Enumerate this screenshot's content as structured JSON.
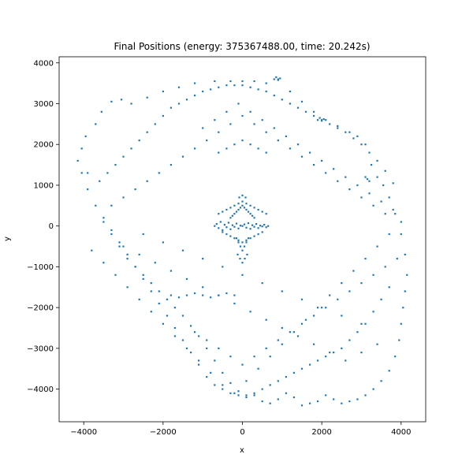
{
  "chart_data": {
    "type": "scatter",
    "title": "Final Positions (energy: 375367488.00, time: 20.242s)",
    "xlabel": "x",
    "ylabel": "y",
    "xlim": [
      -4620,
      4620
    ],
    "ylim": [
      -4800,
      4150
    ],
    "xticks": [
      -4000,
      -2000,
      0,
      2000,
      4000
    ],
    "xtick_labels": [
      "−4000",
      "−2000",
      "0",
      "2000",
      "4000"
    ],
    "yticks": [
      -4000,
      -3000,
      -2000,
      -1000,
      0,
      1000,
      2000,
      3000,
      4000
    ],
    "ytick_labels": [
      "−4000",
      "−3000",
      "−2000",
      "−1000",
      "0",
      "1000",
      "2000",
      "3000",
      "4000"
    ],
    "grid": false,
    "legend": "none",
    "point_color": "#1f77b4",
    "series": [
      {
        "x": [
          -4150,
          -4050,
          -3950,
          -3900,
          -3700,
          -3550,
          -3300,
          -3050,
          -2800,
          -2400,
          -2000,
          -1600,
          -1200,
          -700,
          -300,
          0,
          300,
          600,
          900,
          1200,
          1500,
          1800,
          2100,
          2400,
          2700,
          2900,
          3100,
          3250,
          3400,
          3550,
          3700,
          3850,
          4000,
          4100,
          4150,
          4100,
          4050,
          4000,
          3950,
          3850,
          3700,
          3500,
          3300,
          3100,
          2900,
          2700,
          2500,
          2300,
          2100,
          1900,
          1700,
          1500,
          1300,
          1100,
          900,
          700,
          500,
          300,
          100,
          -100,
          -300,
          -500,
          -700,
          -900,
          -1100,
          -1300,
          -1500,
          -1700,
          -1900,
          -2100,
          -2300,
          -2500,
          -2700,
          -2900,
          -3100,
          -3300,
          -3500,
          -3700,
          -3900,
          -4050,
          -3600,
          -3400,
          -3200,
          -3000,
          -2800,
          -2600,
          -2400,
          -2200,
          -2000,
          -1800,
          -1600,
          -1400,
          -1200,
          -1000,
          -800,
          -600,
          -400,
          -200,
          0,
          200,
          400,
          600,
          800,
          1000,
          1200,
          1400,
          1600,
          1800,
          2000,
          2200,
          2400,
          2600,
          2800,
          3000,
          3200,
          3400,
          3600,
          3800,
          -3500,
          -3300,
          -3100,
          -2900,
          -2700,
          -2500,
          -2300,
          -2100,
          -1900,
          -1700,
          -1500,
          -1300,
          -1100,
          -900,
          -700,
          -500,
          -300,
          -100,
          100,
          300,
          500,
          700,
          900,
          1100,
          1300,
          1500,
          1700,
          1900,
          2100,
          2300,
          2500,
          2700,
          2900,
          3100,
          3300,
          3500,
          3700,
          -3300,
          -3000,
          -2700,
          -2400,
          -2100,
          -1800,
          -1500,
          -1200,
          -900,
          -600,
          -300,
          0,
          300,
          600,
          900,
          1200,
          1500,
          1800,
          2100,
          2400,
          2700,
          3000,
          3300,
          3600,
          -3000,
          -2600,
          -2200,
          -1800,
          -1400,
          -1000,
          -600,
          -200,
          200,
          600,
          1000,
          1400,
          1800,
          2200,
          2600,
          3000,
          3400,
          -2500,
          -2000,
          -1500,
          -1000,
          -500,
          0,
          500,
          1000,
          1500,
          2000,
          2500,
          3000,
          -700,
          -650,
          -600,
          -550,
          -500,
          -450,
          -400,
          -350,
          -300,
          -250,
          -200,
          -150,
          -100,
          -50,
          0,
          50,
          100,
          150,
          200,
          250,
          300,
          350,
          400,
          450,
          500,
          550,
          600,
          650,
          -600,
          -500,
          -400,
          -300,
          -200,
          -100,
          0,
          100,
          200,
          300,
          400,
          500,
          600,
          -150,
          -100,
          -50,
          0,
          50,
          100,
          150,
          -120,
          -60,
          0,
          60,
          120,
          -80,
          0,
          80,
          -300,
          -250,
          -200,
          -150,
          -100,
          -50,
          0,
          50,
          100,
          150,
          200,
          250,
          300,
          -500,
          -400,
          -300,
          -200,
          -100,
          0,
          100,
          200,
          300,
          400,
          500,
          800,
          850,
          900,
          950,
          1900,
          1950,
          2000,
          2050,
          3100,
          3150,
          3200,
          -1800,
          -1600,
          -1400,
          -1200,
          -1000,
          -800,
          -600,
          -400,
          -200,
          -600,
          -400,
          -200,
          0,
          200,
          400,
          600,
          -3800,
          -3500,
          -3200,
          -2900,
          -2600,
          -2300,
          -2000,
          -1700,
          -1400,
          -1100,
          -800,
          -500,
          -200,
          100,
          400,
          700,
          1000,
          1300,
          1600,
          1900,
          2200,
          2500,
          2800,
          3100,
          3400,
          3700,
          4000,
          -1000,
          -700,
          -400,
          -100,
          200,
          500,
          800,
          1100,
          1400,
          1700,
          2000,
          2300,
          2600,
          2900,
          3200,
          3500,
          3800,
          -1200,
          -900,
          -600,
          -300,
          0,
          300,
          600,
          900,
          1200,
          1500,
          1800,
          2100,
          2400,
          2700,
          3000,
          3300,
          3600,
          3900
        ],
        "y": [
          1600,
          1900,
          2200,
          1300,
          2500,
          2800,
          3050,
          3100,
          3000,
          3150,
          3300,
          3400,
          3500,
          3550,
          3550,
          3550,
          3550,
          3500,
          3600,
          3300,
          3050,
          2800,
          2600,
          2450,
          2300,
          2200,
          2000,
          1500,
          1200,
          1000,
          700,
          300,
          -200,
          -700,
          -1200,
          -1600,
          -2000,
          -2400,
          -2800,
          -3200,
          -3550,
          -3800,
          -4000,
          -4150,
          -4250,
          -4300,
          -4350,
          -4250,
          -4150,
          -4300,
          -4350,
          -4400,
          -4200,
          -4100,
          -4250,
          -4350,
          -4300,
          -4150,
          -4200,
          -4050,
          -3850,
          -3600,
          -3300,
          -3000,
          -2700,
          -2450,
          -2200,
          -2000,
          -1800,
          -1600,
          -1400,
          -1200,
          -1000,
          -800,
          -500,
          -200,
          100,
          500,
          900,
          1300,
          1100,
          1300,
          1500,
          1700,
          1900,
          2100,
          2300,
          2500,
          2700,
          2900,
          3000,
          3100,
          3200,
          3300,
          3350,
          3400,
          3450,
          3450,
          3450,
          3400,
          3350,
          3300,
          3200,
          3100,
          3000,
          2900,
          2800,
          2700,
          2600,
          2500,
          2400,
          2300,
          2150,
          2000,
          1800,
          1600,
          1350,
          1050,
          200,
          -100,
          -400,
          -700,
          -1000,
          -1300,
          -1600,
          -1900,
          -2200,
          -2500,
          -2800,
          -3100,
          -3400,
          -3700,
          -3900,
          -4000,
          -4100,
          -4150,
          -4150,
          -4100,
          -4000,
          -3900,
          -3800,
          -3700,
          -3600,
          -3500,
          -3400,
          -3300,
          -3200,
          -3100,
          -3000,
          -2800,
          -2600,
          -2400,
          -2100,
          -1800,
          -1500,
          500,
          700,
          900,
          1100,
          1300,
          1500,
          1700,
          1900,
          2100,
          2300,
          2500,
          2700,
          2500,
          2300,
          2100,
          1900,
          1700,
          1500,
          1300,
          1100,
          900,
          700,
          500,
          300,
          -500,
          -700,
          -900,
          -1100,
          -1300,
          -1500,
          -1700,
          -1900,
          -2100,
          -2300,
          -2500,
          -2700,
          -2900,
          -3100,
          -3300,
          -3100,
          -2900,
          -200,
          -400,
          -600,
          -800,
          -1000,
          -1200,
          -1400,
          -1600,
          -1800,
          -2000,
          -2200,
          -2400,
          0,
          50,
          -50,
          100,
          -100,
          30,
          -30,
          80,
          -80,
          20,
          -20,
          60,
          -60,
          10,
          0,
          40,
          -40,
          70,
          -70,
          20,
          -20,
          50,
          -50,
          10,
          -10,
          30,
          -30,
          0,
          300,
          350,
          400,
          450,
          500,
          550,
          600,
          550,
          500,
          450,
          400,
          350,
          300,
          -300,
          -400,
          -500,
          -600,
          -500,
          -400,
          -300,
          -700,
          -800,
          -900,
          -800,
          -700,
          700,
          750,
          700,
          200,
          250,
          300,
          350,
          400,
          450,
          500,
          450,
          400,
          350,
          300,
          250,
          200,
          -150,
          -200,
          -250,
          -300,
          -350,
          -400,
          -350,
          -300,
          -250,
          -200,
          -150,
          3600,
          3650,
          3580,
          3620,
          2600,
          2650,
          2580,
          2620,
          1200,
          1150,
          1100,
          -1700,
          -1750,
          -1700,
          -1650,
          -1700,
          -1750,
          -1700,
          -1650,
          -1700,
          1800,
          1900,
          2000,
          2100,
          2000,
          1900,
          1800,
          -600,
          -900,
          -1200,
          -1500,
          -1800,
          -2100,
          -2400,
          -2700,
          -3000,
          -3300,
          -3600,
          -3900,
          -4100,
          -3800,
          -3500,
          -3200,
          -2900,
          -2600,
          -2300,
          -2000,
          -1700,
          -1400,
          -1100,
          -800,
          -500,
          -200,
          100,
          2400,
          2600,
          2800,
          3000,
          2800,
          2600,
          2400,
          2200,
          2000,
          1800,
          1600,
          1400,
          1200,
          1000,
          800,
          600,
          400,
          -2600,
          -2800,
          -3000,
          -3200,
          -3400,
          -3200,
          -3000,
          -2800,
          -2600,
          -2400,
          -2200,
          -2000,
          -1800,
          -1600,
          -1400,
          -1200,
          -1000,
          -800
        ]
      }
    ]
  }
}
